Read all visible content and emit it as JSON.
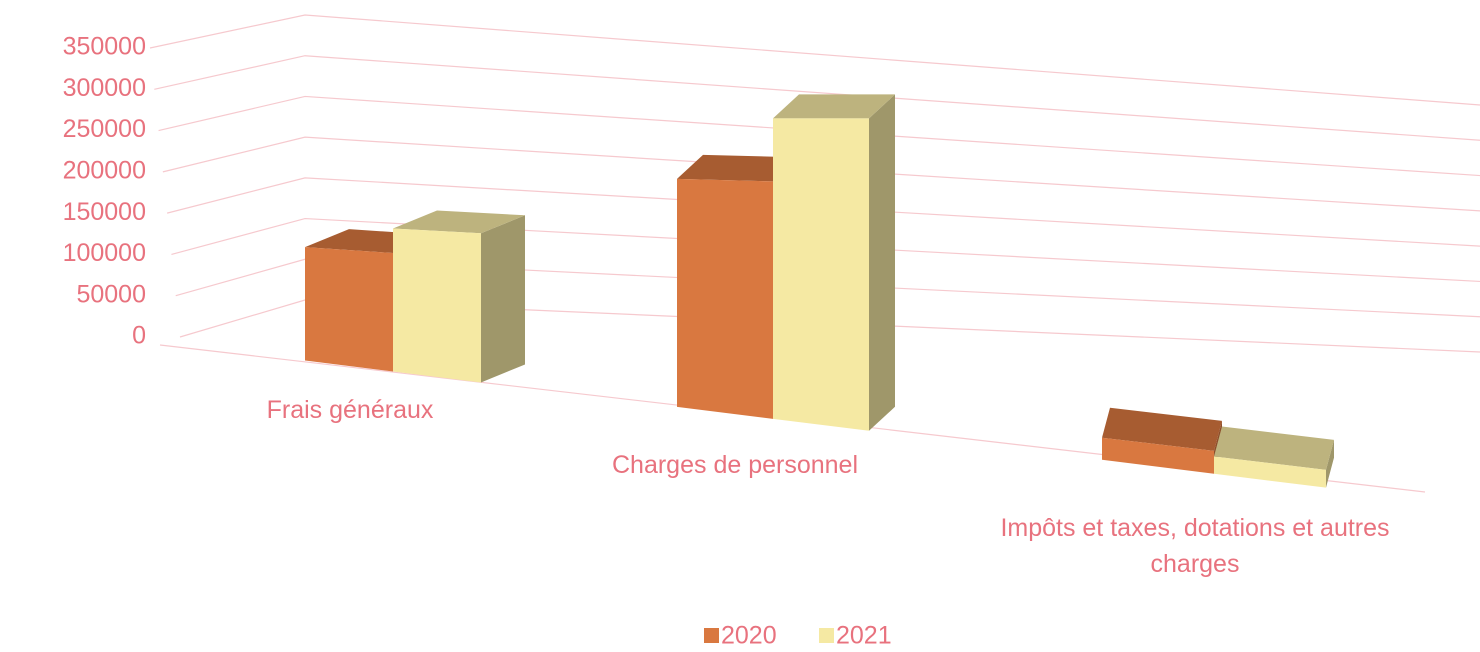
{
  "chart_data": {
    "type": "bar3d",
    "categories": [
      "Frais généraux",
      "Charges de personnel",
      "Impôts et taxes, dotations et autres charges"
    ],
    "series": [
      {
        "name": "2020",
        "color": "#d97840",
        "values": [
          145000,
          245000,
          20000
        ]
      },
      {
        "name": "2021",
        "color": "#f5e9a3",
        "values": [
          175000,
          310000,
          15000
        ]
      }
    ],
    "ylim": [
      0,
      350000
    ],
    "yticks": [
      0,
      50000,
      100000,
      150000,
      200000,
      250000,
      300000,
      350000
    ],
    "grid": true,
    "legend": "bottom"
  }
}
